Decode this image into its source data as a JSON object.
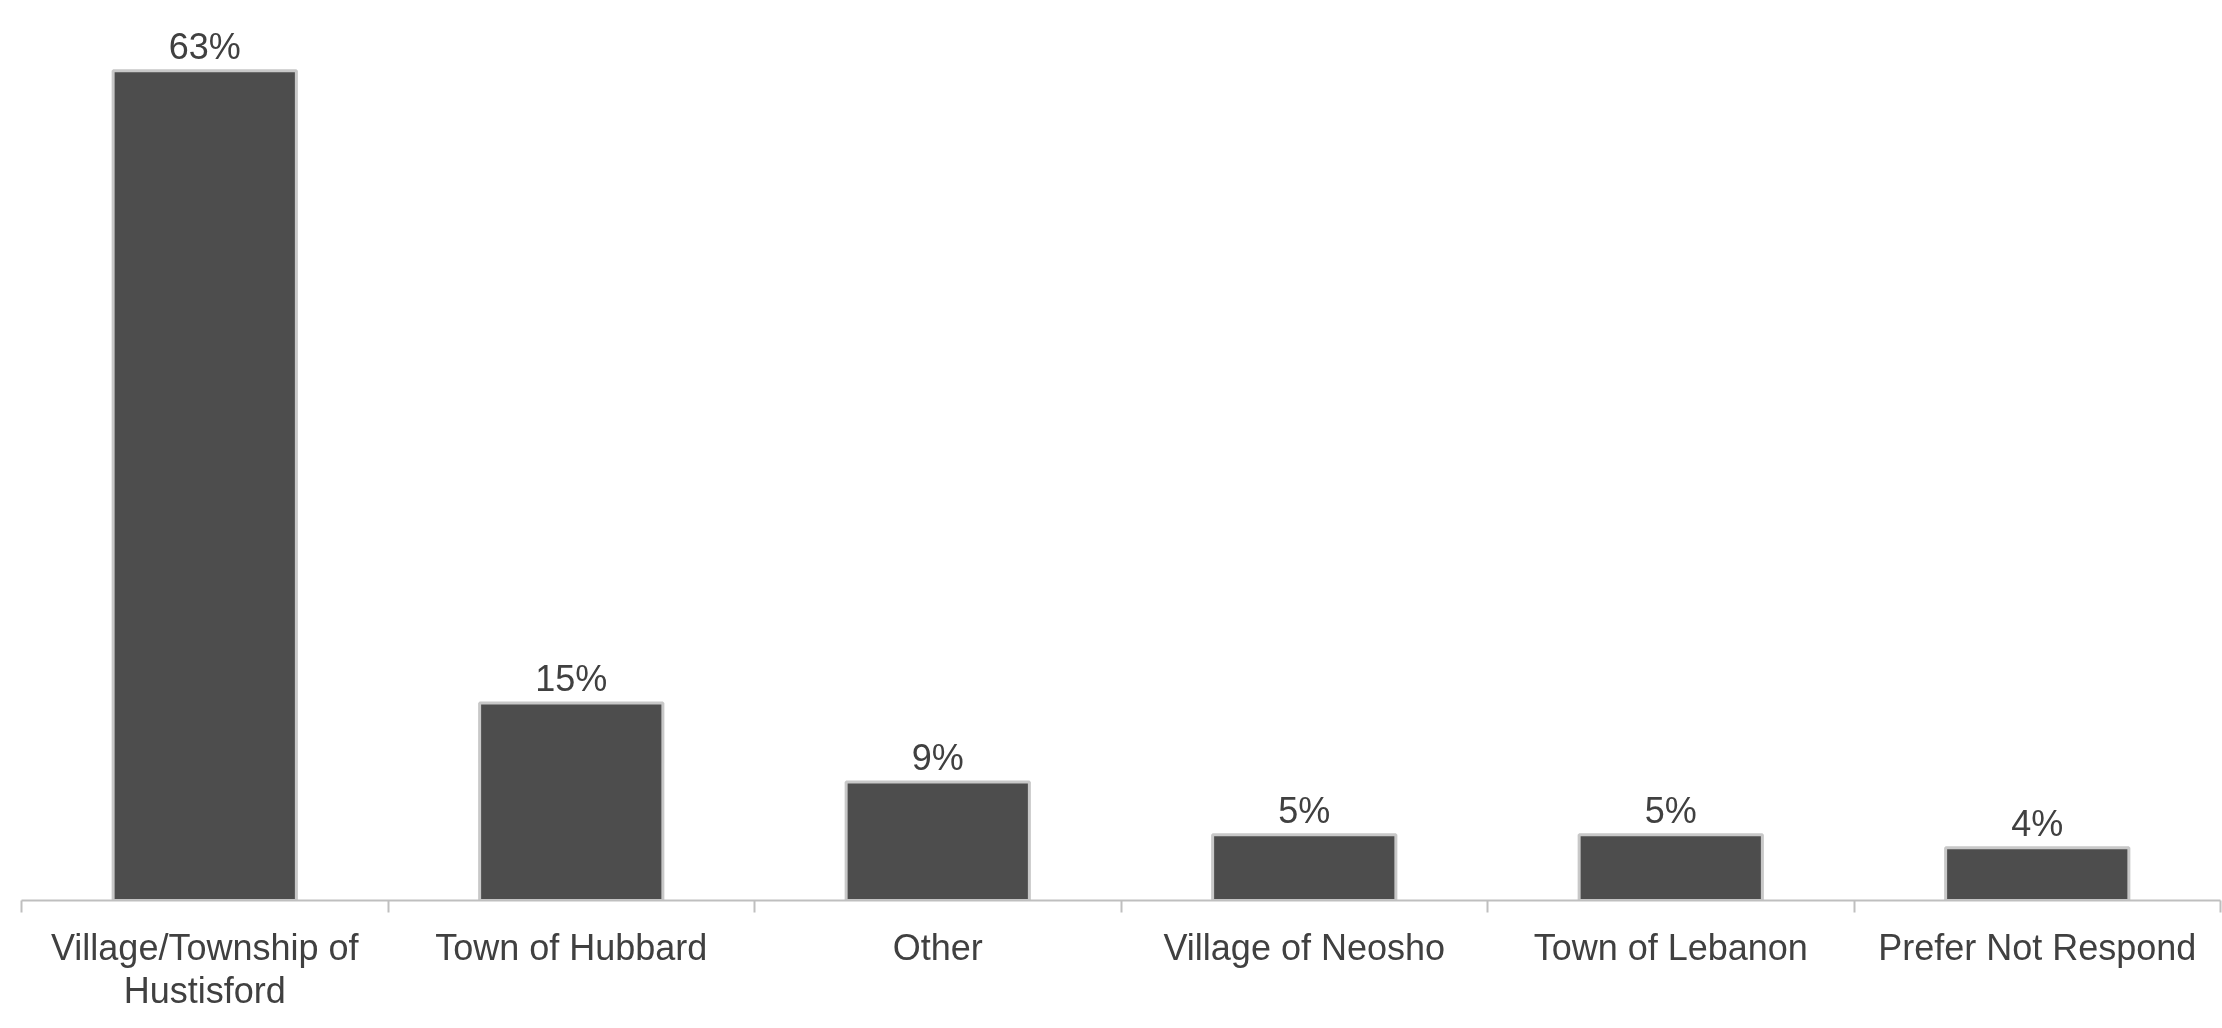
{
  "chart_data": {
    "type": "bar",
    "tick_labels": "x",
    "categories": [
      "Village/Township of Hustisford",
      "Town of Hubbard",
      "Other",
      "Village of Neosho",
      "Town of Lebanon",
      "Prefer Not Respond"
    ],
    "values": [
      63,
      15,
      9,
      5,
      5,
      4
    ],
    "value_labels": [
      "63%",
      "15%",
      "9%",
      "5%",
      "5%",
      "4%"
    ],
    "color": "#4d4d4d"
  }
}
